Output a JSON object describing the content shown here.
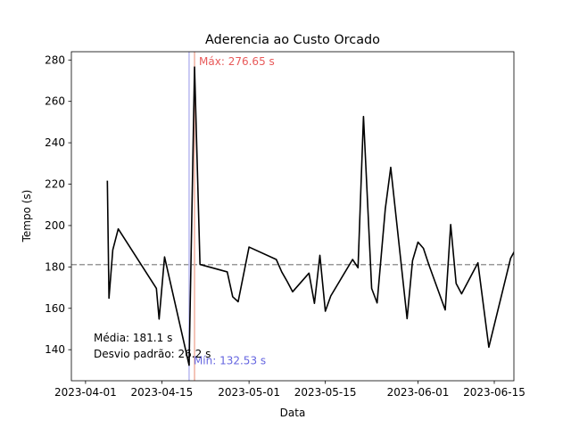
{
  "chart_data": {
    "type": "line",
    "title": "Aderencia ao Custo Orcado",
    "xlabel": "Data",
    "ylabel": "Tempo (s)",
    "x_tick_labels": [
      "2023-04-01",
      "2023-04-15",
      "2023-05-01",
      "2023-05-15",
      "2023-06-01",
      "2023-06-15"
    ],
    "y_ticks": [
      140,
      160,
      180,
      200,
      220,
      240,
      260,
      280
    ],
    "xlim_days": [
      -2.6,
      78.6
    ],
    "ylim": [
      125,
      284
    ],
    "series": [
      {
        "name": "Tempo",
        "color": "#000000",
        "x_days": [
          4.0,
          4.3,
          5.0,
          6.0,
          13.0,
          13.5,
          14.5,
          19.0,
          20.0,
          21.0,
          26.0,
          27.0,
          28.0,
          30.0,
          35.0,
          36.0,
          37.0,
          38.0,
          41.0,
          42.0,
          43.0,
          44.0,
          45.0,
          49.0,
          50.0,
          51.0,
          52.5,
          53.5,
          55.0,
          56.0,
          59.0,
          60.0,
          61.0,
          62.0,
          63.0,
          66.0,
          67.0,
          68.0,
          69.0,
          72.0,
          74.0,
          78.0,
          79.0
        ],
        "values": [
          221.7,
          164.9,
          188.2,
          198.4,
          169.6,
          154.8,
          184.8,
          132.5,
          276.6,
          181.2,
          177.6,
          165.6,
          163.2,
          189.6,
          183.6,
          177.6,
          173.0,
          168.0,
          177.0,
          162.4,
          185.6,
          158.6,
          166.0,
          183.6,
          179.6,
          252.7,
          169.6,
          162.6,
          208.0,
          228.1,
          155.0,
          183.0,
          192.0,
          189.0,
          181.0,
          159.2,
          200.5,
          172.0,
          167.0,
          182.0,
          141.2,
          184.2,
          189.0
        ]
      }
    ],
    "mean": 181.1,
    "mean_line_color": "#999999",
    "max": {
      "value": 276.65,
      "x_days": 20.0,
      "label": "Máx: 276.65 s",
      "color": "#f0b0a0",
      "text_color": "#e85a5a"
    },
    "min": {
      "value": 132.53,
      "x_days": 19.0,
      "label": "Mín: 132.53 s",
      "color": "#b8b8f0",
      "text_color": "#6565e0"
    },
    "annotations": {
      "mean_text": "Média: 181.1 s",
      "std_text": "Desvio padrão: 26.2 s"
    }
  }
}
